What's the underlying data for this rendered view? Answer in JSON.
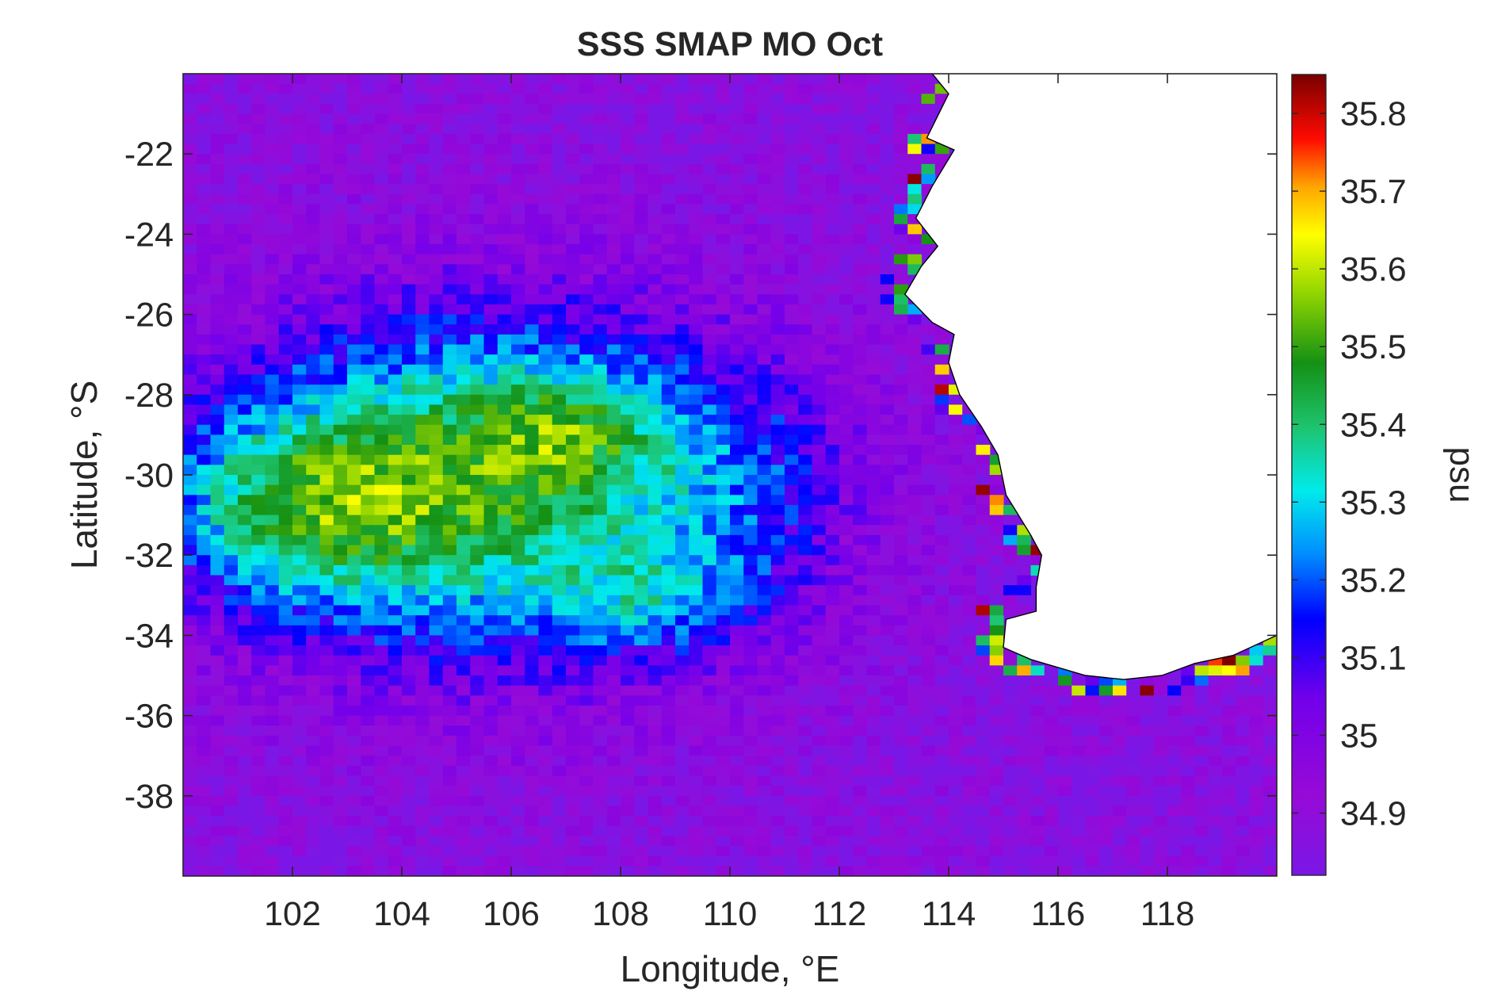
{
  "chart_data": {
    "type": "heatmap",
    "title": "SSS SMAP MO Oct",
    "xlabel": "Longitude, °E",
    "ylabel": "Latitude, °S",
    "colorbar_label": "psu",
    "xlim": [
      100.0,
      120.0
    ],
    "ylim": [
      -40.0,
      -20.0
    ],
    "x_ticks": [
      102,
      104,
      106,
      108,
      110,
      112,
      114,
      116,
      118
    ],
    "y_ticks": [
      -22,
      -24,
      -26,
      -28,
      -30,
      -32,
      -34,
      -36,
      -38
    ],
    "x_tick_labels": [
      "102",
      "104",
      "106",
      "108",
      "110",
      "112",
      "114",
      "116",
      "118"
    ],
    "y_tick_labels": [
      "-22",
      "-24",
      "-26",
      "-28",
      "-30",
      "-32",
      "-34",
      "-36",
      "-38"
    ],
    "clim": [
      34.82,
      35.85
    ],
    "colorbar_ticks": [
      35.8,
      35.7,
      35.6,
      35.5,
      35.4,
      35.3,
      35.2,
      35.1,
      35.0,
      34.9
    ],
    "colorbar_tick_labels": [
      "35.8",
      "35.7",
      "35.6",
      "35.5",
      "35.4",
      "35.3",
      "35.2",
      "35.1",
      "35",
      "34.9"
    ],
    "colormap": "jet-like (purple → blue → cyan → green → yellow → red → dark red)",
    "land_color": "#ffffff",
    "coastline_color": "#000000",
    "grid_resolution_deg": 0.25,
    "field_description": "Sea surface salinity; maximum ~35.8 psu near 101–103°E, 30–32°S; ~35.3–35.5 psu over 103–110°E, 25–35°S; ~34.85–34.95 psu in the north, far south and east; elevated values (up to 35.8) along the Western Australian coastline"
  }
}
